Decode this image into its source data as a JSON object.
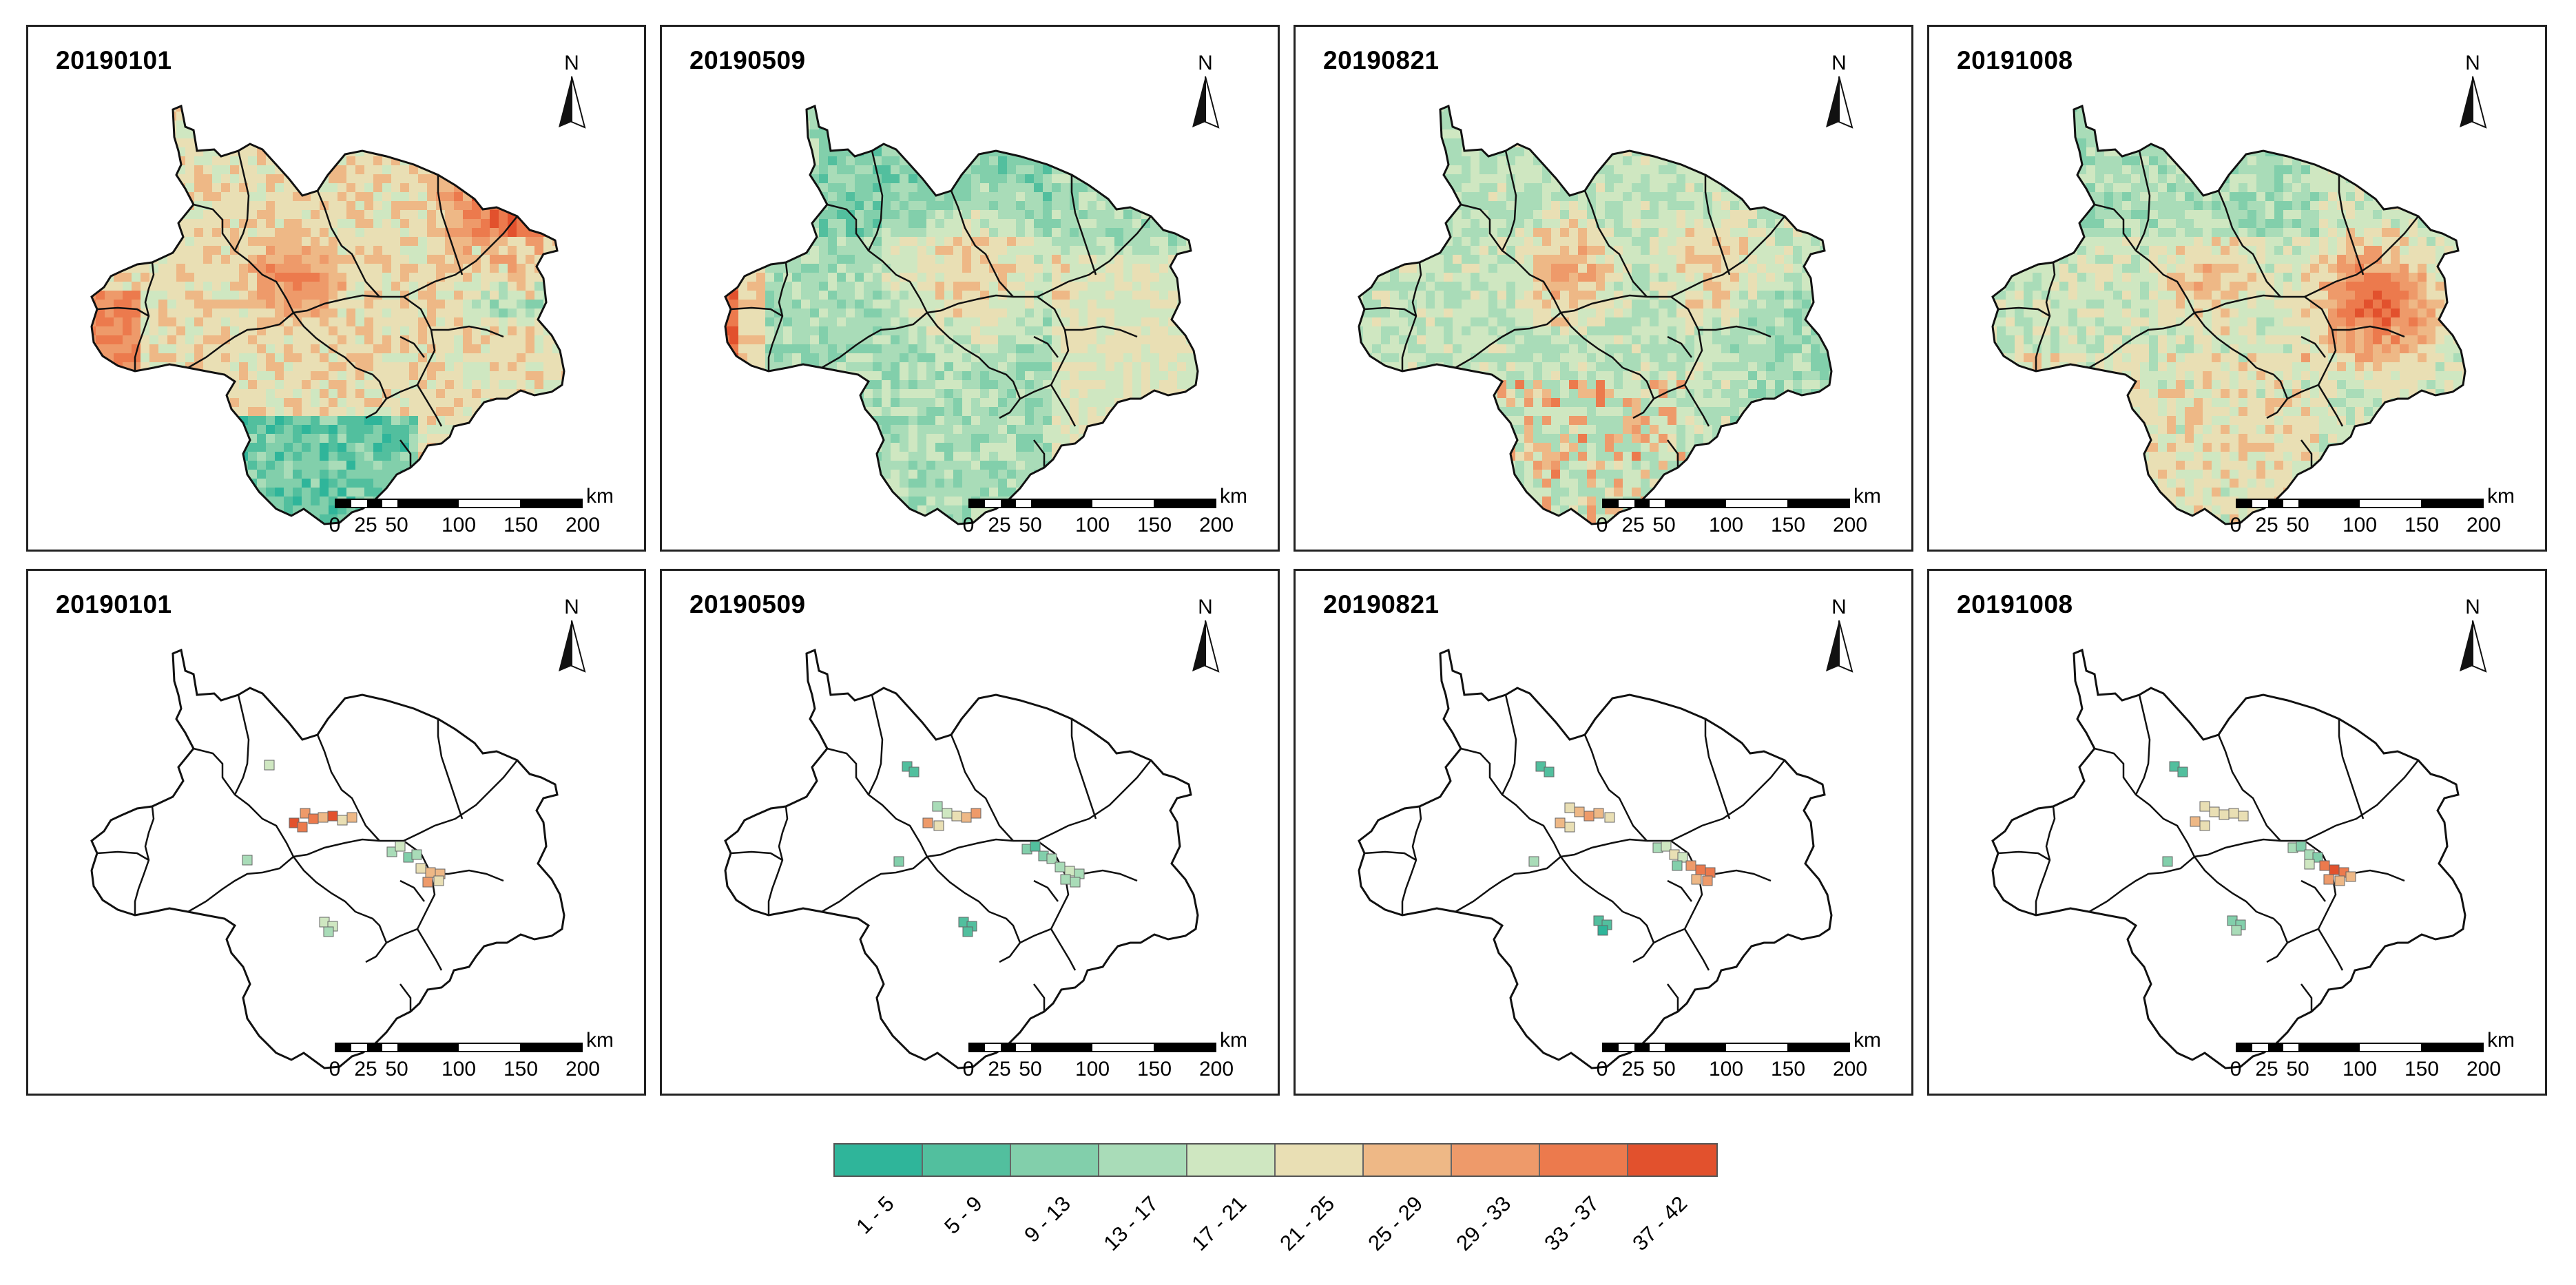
{
  "panels": [
    {
      "date": "20190101",
      "type": "surface",
      "palette": "hot-north"
    },
    {
      "date": "20190509",
      "type": "surface",
      "palette": "cool"
    },
    {
      "date": "20190821",
      "type": "surface",
      "palette": "mid"
    },
    {
      "date": "20191008",
      "type": "surface",
      "palette": "hot-east"
    },
    {
      "date": "20190101",
      "type": "stations",
      "palette": "hot-north"
    },
    {
      "date": "20190509",
      "type": "stations",
      "palette": "cool"
    },
    {
      "date": "20190821",
      "type": "stations",
      "palette": "mid"
    },
    {
      "date": "20191008",
      "type": "stations",
      "palette": "hot-east"
    }
  ],
  "north_arrow": {
    "label": "N",
    "icon": "north-arrow-icon"
  },
  "scale_bar": {
    "unit": "km",
    "ticks": [
      "0",
      "25",
      "50",
      "100",
      "150",
      "200"
    ],
    "tick_values": [
      0,
      25,
      50,
      100,
      150,
      200
    ],
    "max": 200
  },
  "legend": {
    "classes": [
      "1 - 5",
      "5 - 9",
      "9 - 13",
      "13 - 17",
      "17 - 21",
      "21 - 25",
      "25 - 29",
      "29 - 33",
      "33 - 37",
      "37 - 42"
    ],
    "colors": [
      "#2fb59a",
      "#52bf9e",
      "#82cfab",
      "#a9dcb8",
      "#cfe7c1",
      "#e9dfb4",
      "#eeb886",
      "#ee9a6a",
      "#ec7a4d",
      "#e2512d"
    ]
  }
}
